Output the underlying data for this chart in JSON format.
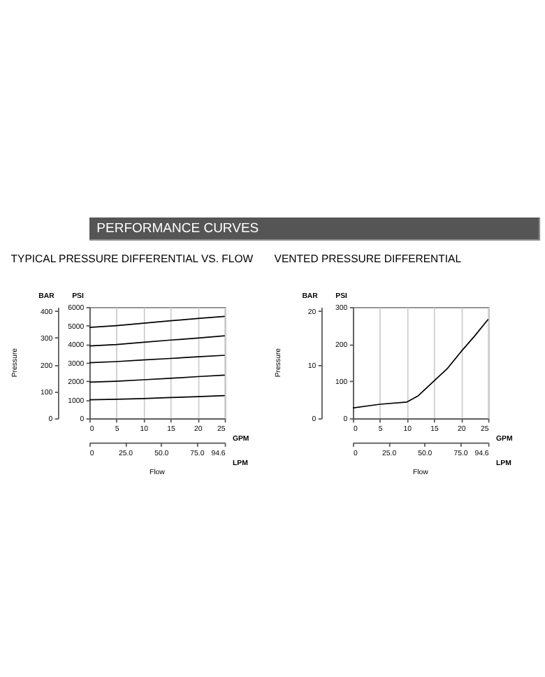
{
  "chart_data": [
    {
      "type": "other",
      "title": "PERFORMANCE CURVES"
    },
    {
      "type": "line",
      "title": "TYPICAL PRESSURE DIFFERENTIAL VS. FLOW",
      "xlabel": "Flow",
      "y2label": "Pressure",
      "annotations": [
        "BAR",
        "PSI",
        "GPM",
        "LPM"
      ],
      "x": [
        0,
        5,
        10,
        15,
        20,
        25
      ],
      "series": [
        {
          "color": "#000000",
          "values": [
            1000,
            1030,
            1070,
            1120,
            1170,
            1230
          ]
        },
        {
          "color": "#000000",
          "values": [
            1950,
            2000,
            2080,
            2160,
            2250,
            2330
          ]
        },
        {
          "color": "#000000",
          "values": [
            3000,
            3060,
            3150,
            3230,
            3320,
            3400
          ]
        },
        {
          "color": "#000000",
          "values": [
            3900,
            3980,
            4100,
            4220,
            4330,
            4450
          ]
        },
        {
          "color": "#000000",
          "values": [
            4900,
            5000,
            5130,
            5260,
            5380,
            5500
          ]
        }
      ],
      "xlim": [
        0,
        25
      ],
      "xticks": [
        0,
        5,
        10,
        15,
        20,
        25
      ],
      "x2lim": [
        0,
        94.6
      ],
      "x2ticks": [
        {
          "value": 0,
          "label": "0"
        },
        {
          "value": 25,
          "label": "25.0"
        },
        {
          "value": 50,
          "label": "50.0"
        },
        {
          "value": 75,
          "label": "75.0"
        },
        94.6
      ],
      "ylim": [
        0,
        6000
      ],
      "yticks": [
        0,
        1000,
        2000,
        3000,
        4000,
        5000,
        6000
      ],
      "y2lim": [
        0,
        413.7
      ],
      "y2ticks": [
        {
          "value": 0,
          "label": "0"
        },
        100,
        200,
        300,
        400
      ],
      "grid": "x",
      "legend": false,
      "marker": "none",
      "line_style": "solid"
    },
    {
      "type": "line",
      "title": "VENTED PRESSURE DIFFERENTIAL",
      "xlabel": "Flow",
      "y2label": "Pressure",
      "annotations": [
        "BAR",
        "PSI",
        "GPM",
        "LPM"
      ],
      "x": [
        0,
        5,
        10,
        12,
        15,
        17.5,
        20,
        22.5,
        25
      ],
      "series": [
        {
          "color": "#000000",
          "values": [
            28,
            38,
            44,
            60,
            101,
            135,
            180,
            222,
            267
          ]
        }
      ],
      "xlim": [
        0,
        25
      ],
      "xticks": [
        0,
        5,
        10,
        15,
        20,
        25
      ],
      "x2lim": [
        0,
        94.6
      ],
      "x2ticks": [
        {
          "value": 0,
          "label": "0"
        },
        {
          "value": 25,
          "label": "25.0"
        },
        {
          "value": 50,
          "label": "50.0"
        },
        {
          "value": 75,
          "label": "75.0"
        },
        94.6
      ],
      "ylim": [
        0,
        300
      ],
      "yticks": [
        0,
        100,
        200,
        300
      ],
      "y2lim": [
        0,
        20.69
      ],
      "y2ticks": [
        {
          "value": 0,
          "label": "0"
        },
        10,
        20
      ],
      "grid": "x",
      "legend": false,
      "marker": "none",
      "line_style": "solid"
    }
  ]
}
